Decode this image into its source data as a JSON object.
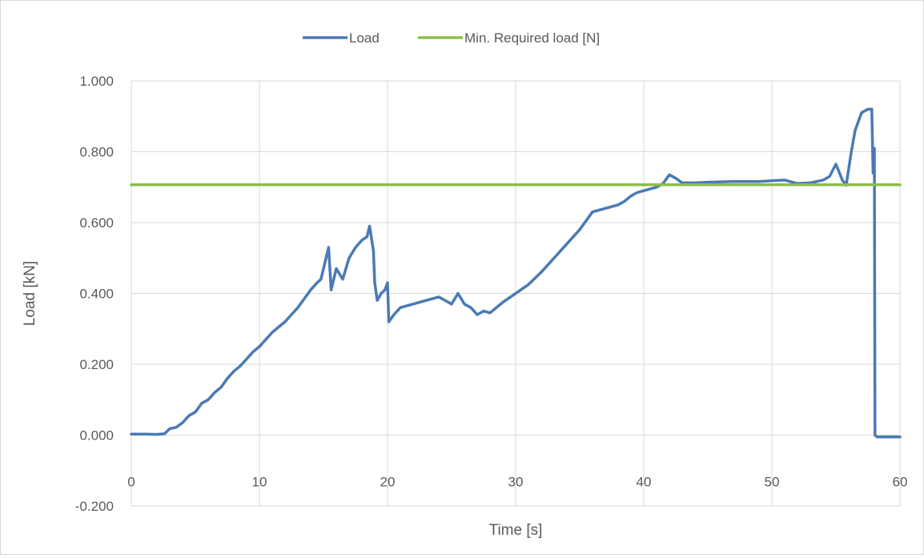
{
  "chart_data": {
    "type": "line",
    "title": "",
    "xlabel": "Time [s]",
    "ylabel": "Load [kN]",
    "xlim": [
      0,
      60
    ],
    "ylim": [
      -0.2,
      1.0
    ],
    "x_ticks": [
      "0",
      "10",
      "20",
      "30",
      "40",
      "50",
      "60"
    ],
    "y_ticks": [
      "-0.200",
      "0.000",
      "0.200",
      "0.400",
      "0.600",
      "0.800",
      "1.000"
    ],
    "grid": true,
    "legend_position": "top",
    "series": [
      {
        "name": "Load",
        "color": "#4a7ab5",
        "points": [
          [
            0,
            0.003
          ],
          [
            1,
            0.003
          ],
          [
            2,
            0.002
          ],
          [
            2.6,
            0.004
          ],
          [
            3,
            0.018
          ],
          [
            3.5,
            0.022
          ],
          [
            4,
            0.035
          ],
          [
            4.5,
            0.055
          ],
          [
            5,
            0.065
          ],
          [
            5.5,
            0.09
          ],
          [
            6,
            0.1
          ],
          [
            6.5,
            0.12
          ],
          [
            7,
            0.135
          ],
          [
            7.5,
            0.16
          ],
          [
            8,
            0.18
          ],
          [
            8.5,
            0.195
          ],
          [
            9,
            0.215
          ],
          [
            9.5,
            0.235
          ],
          [
            10,
            0.25
          ],
          [
            10.5,
            0.27
          ],
          [
            11,
            0.29
          ],
          [
            11.5,
            0.305
          ],
          [
            12,
            0.32
          ],
          [
            12.5,
            0.34
          ],
          [
            13,
            0.36
          ],
          [
            13.5,
            0.385
          ],
          [
            14,
            0.41
          ],
          [
            14.5,
            0.43
          ],
          [
            14.8,
            0.44
          ],
          [
            15.2,
            0.5
          ],
          [
            15.4,
            0.53
          ],
          [
            15.6,
            0.41
          ],
          [
            16,
            0.47
          ],
          [
            16.5,
            0.44
          ],
          [
            17,
            0.5
          ],
          [
            17.5,
            0.53
          ],
          [
            18,
            0.55
          ],
          [
            18.4,
            0.56
          ],
          [
            18.6,
            0.59
          ],
          [
            18.9,
            0.52
          ],
          [
            19,
            0.43
          ],
          [
            19.2,
            0.38
          ],
          [
            19.5,
            0.4
          ],
          [
            19.8,
            0.41
          ],
          [
            20,
            0.43
          ],
          [
            20.1,
            0.32
          ],
          [
            20.5,
            0.34
          ],
          [
            21,
            0.36
          ],
          [
            22,
            0.37
          ],
          [
            23,
            0.38
          ],
          [
            24,
            0.39
          ],
          [
            25,
            0.37
          ],
          [
            25.5,
            0.4
          ],
          [
            26,
            0.37
          ],
          [
            26.5,
            0.36
          ],
          [
            27,
            0.34
          ],
          [
            27.5,
            0.35
          ],
          [
            28,
            0.345
          ],
          [
            28.5,
            0.36
          ],
          [
            29,
            0.375
          ],
          [
            30,
            0.4
          ],
          [
            31,
            0.425
          ],
          [
            32,
            0.46
          ],
          [
            33,
            0.5
          ],
          [
            34,
            0.54
          ],
          [
            35,
            0.58
          ],
          [
            36,
            0.63
          ],
          [
            37,
            0.64
          ],
          [
            37.5,
            0.645
          ],
          [
            38,
            0.65
          ],
          [
            38.5,
            0.66
          ],
          [
            39,
            0.675
          ],
          [
            39.5,
            0.685
          ],
          [
            40,
            0.69
          ],
          [
            41,
            0.7
          ],
          [
            41.5,
            0.71
          ],
          [
            42,
            0.735
          ],
          [
            42.5,
            0.725
          ],
          [
            43,
            0.712
          ],
          [
            44,
            0.712
          ],
          [
            45,
            0.714
          ],
          [
            46,
            0.715
          ],
          [
            47,
            0.716
          ],
          [
            48,
            0.716
          ],
          [
            49,
            0.716
          ],
          [
            50,
            0.718
          ],
          [
            51,
            0.72
          ],
          [
            52,
            0.71
          ],
          [
            53,
            0.712
          ],
          [
            54,
            0.72
          ],
          [
            54.5,
            0.73
          ],
          [
            55,
            0.765
          ],
          [
            55.5,
            0.72
          ],
          [
            55.8,
            0.705
          ],
          [
            56.2,
            0.8
          ],
          [
            56.5,
            0.86
          ],
          [
            57,
            0.91
          ],
          [
            57.5,
            0.92
          ],
          [
            57.8,
            0.92
          ],
          [
            57.9,
            0.74
          ],
          [
            58,
            0.81
          ],
          [
            58.05,
            0.0
          ],
          [
            58.2,
            -0.005
          ],
          [
            60,
            -0.005
          ]
        ]
      },
      {
        "name": "Min. Required load [N]",
        "color": "#8cbd4a",
        "points": [
          [
            0,
            0.707
          ],
          [
            60,
            0.707
          ]
        ]
      }
    ]
  }
}
